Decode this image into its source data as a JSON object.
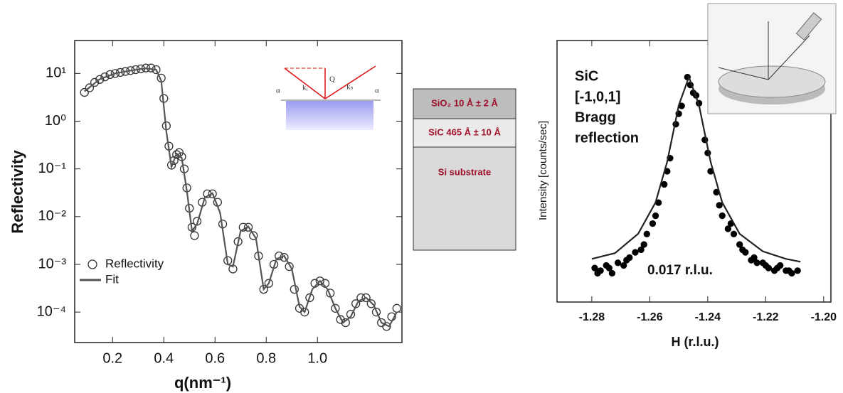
{
  "chart_data": [
    {
      "type": "scatter",
      "xlabel": "q(nm⁻¹)",
      "ylabel": "Reflectivity",
      "yscale": "log",
      "legend": "lower left",
      "xlim": [
        0.052,
        1.33
      ],
      "ylim": [
        2.3e-05,
        49
      ],
      "xticks": [
        0.2,
        0.4,
        0.6,
        0.8,
        {
          "value": 1,
          "label": "1.0"
        }
      ],
      "yticks": [
        {
          "value": 10,
          "label": "10¹"
        },
        {
          "value": 1,
          "label": "10⁰"
        },
        {
          "value": 0.1,
          "label": "10⁻¹"
        },
        {
          "value": 0.01,
          "label": "10⁻²"
        },
        {
          "value": 0.001,
          "label": "10⁻³"
        },
        {
          "value": 0.0001,
          "label": "10⁻⁴"
        }
      ],
      "inset_labels": [
        "α",
        "kᵢ",
        "Q",
        "kₛ",
        "α"
      ],
      "series": [
        {
          "name": "Reflectivity",
          "style": "open",
          "color": "#333333",
          "x": [
            0.09,
            0.11,
            0.13,
            0.15,
            0.17,
            0.19,
            0.21,
            0.23,
            0.25,
            0.27,
            0.29,
            0.31,
            0.33,
            0.35,
            0.37,
            0.39,
            0.4,
            0.41,
            0.42,
            0.43,
            0.44,
            0.45,
            0.46,
            0.47,
            0.48,
            0.49,
            0.5,
            0.51,
            0.52,
            0.53,
            0.55,
            0.57,
            0.59,
            0.61,
            0.63,
            0.65,
            0.67,
            0.69,
            0.71,
            0.73,
            0.75,
            0.77,
            0.79,
            0.81,
            0.83,
            0.85,
            0.87,
            0.89,
            0.91,
            0.93,
            0.95,
            0.97,
            0.99,
            1.01,
            1.03,
            1.05,
            1.07,
            1.09,
            1.11,
            1.13,
            1.15,
            1.17,
            1.19,
            1.21,
            1.23,
            1.25,
            1.27,
            1.29,
            1.31
          ],
          "values": [
            4,
            5,
            6.5,
            7.5,
            8.5,
            9.5,
            10,
            10.5,
            11,
            11.5,
            12,
            12.5,
            13,
            13,
            12,
            8,
            3,
            0.8,
            0.3,
            0.12,
            0.15,
            0.2,
            0.22,
            0.18,
            0.1,
            0.04,
            0.015,
            0.006,
            0.004,
            0.008,
            0.02,
            0.03,
            0.03,
            0.02,
            0.007,
            0.0012,
            0.0008,
            0.003,
            0.006,
            0.006,
            0.004,
            0.0015,
            0.0003,
            0.0004,
            0.001,
            0.0015,
            0.0014,
            0.0009,
            0.0003,
            0.00012,
            0.0001,
            0.0002,
            0.0004,
            0.00045,
            0.0004,
            0.00025,
            0.00012,
            7e-05,
            6e-05,
            9e-05,
            0.00015,
            0.0002,
            0.0002,
            0.00015,
            0.0001,
            6e-05,
            5e-05,
            8e-05,
            0.00012
          ]
        },
        {
          "name": "Fit",
          "style": "line",
          "color": "#555555",
          "x": [
            0.09,
            0.15,
            0.21,
            0.27,
            0.33,
            0.37,
            0.39,
            0.41,
            0.43,
            0.45,
            0.47,
            0.49,
            0.51,
            0.53,
            0.56,
            0.59,
            0.62,
            0.65,
            0.67,
            0.7,
            0.73,
            0.76,
            0.79,
            0.81,
            0.84,
            0.87,
            0.9,
            0.93,
            0.95,
            0.98,
            1.01,
            1.04,
            1.07,
            1.1,
            1.13,
            1.16,
            1.19,
            1.22,
            1.25,
            1.28,
            1.31
          ],
          "values": [
            4.2,
            7.6,
            10,
            11.5,
            12.8,
            12,
            7,
            0.6,
            0.11,
            0.21,
            0.17,
            0.035,
            0.005,
            0.007,
            0.025,
            0.031,
            0.012,
            0.001,
            0.0009,
            0.005,
            0.0062,
            0.0035,
            0.0003,
            0.0004,
            0.0013,
            0.0015,
            0.0008,
            0.00013,
            0.0001,
            0.0003,
            0.00045,
            0.0003,
            0.00012,
            6e-05,
            8e-05,
            0.00017,
            0.0002,
            0.00014,
            6e-05,
            5e-05,
            0.0001
          ]
        }
      ]
    },
    {
      "type": "scatter",
      "xlabel": "H (r.l.u.)",
      "ylabel": "Intensity [counts/sec]",
      "xlim": [
        -1.292,
        -1.1975
      ],
      "ylim": [
        0,
        1
      ],
      "xticks": [
        -1.28,
        -1.26,
        -1.24,
        -1.22,
        {
          "value": -1.2,
          "label": "-1.20"
        }
      ],
      "annotations": [
        "SiC",
        "[-1,0,1]",
        "Bragg",
        "reflection",
        "0.017 r.l.u."
      ],
      "series": [
        {
          "style": "filled",
          "color": "#000000",
          "x": [
            -1.279,
            -1.278,
            -1.277,
            -1.275,
            -1.274,
            -1.273,
            -1.271,
            -1.269,
            -1.268,
            -1.267,
            -1.265,
            -1.263,
            -1.262,
            -1.261,
            -1.259,
            -1.258,
            -1.257,
            -1.255,
            -1.254,
            -1.253,
            -1.251,
            -1.25,
            -1.249,
            -1.247,
            -1.246,
            -1.245,
            -1.244,
            -1.243,
            -1.241,
            -1.24,
            -1.239,
            -1.237,
            -1.236,
            -1.235,
            -1.233,
            -1.232,
            -1.231,
            -1.229,
            -1.228,
            -1.227,
            -1.225,
            -1.224,
            -1.223,
            -1.221,
            -1.22,
            -1.219,
            -1.217,
            -1.216,
            -1.215,
            -1.213,
            -1.212,
            -1.211,
            -1.209
          ],
          "values": [
            0.13,
            0.11,
            0.12,
            0.14,
            0.13,
            0.11,
            0.15,
            0.14,
            0.16,
            0.17,
            0.19,
            0.2,
            0.22,
            0.26,
            0.3,
            0.33,
            0.38,
            0.45,
            0.5,
            0.55,
            0.68,
            0.72,
            0.75,
            0.86,
            0.83,
            0.8,
            0.79,
            0.76,
            0.62,
            0.57,
            0.5,
            0.42,
            0.37,
            0.33,
            0.28,
            0.3,
            0.26,
            0.22,
            0.2,
            0.19,
            0.16,
            0.17,
            0.15,
            0.15,
            0.14,
            0.13,
            0.12,
            0.13,
            0.14,
            0.12,
            0.12,
            0.11,
            0.12
          ]
        },
        {
          "style": "line",
          "color": "#222222",
          "x": [
            -1.28,
            -1.276,
            -1.272,
            -1.264,
            -1.258,
            -1.254,
            -1.25,
            -1.2465,
            -1.243,
            -1.239,
            -1.235,
            -1.229,
            -1.221,
            -1.213,
            -1.208
          ],
          "values": [
            0.165,
            0.176,
            0.187,
            0.261,
            0.381,
            0.536,
            0.752,
            0.86,
            0.752,
            0.536,
            0.381,
            0.261,
            0.194,
            0.165,
            0.154
          ]
        }
      ]
    }
  ],
  "layers": [
    "SiO₂ 10 Å ± 2 Å",
    "SiC 465 Å ± 10 Å",
    "Si substrate"
  ]
}
